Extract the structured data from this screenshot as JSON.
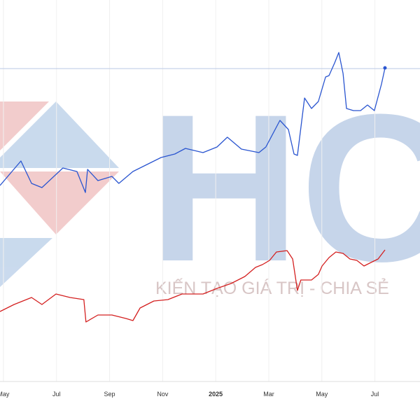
{
  "watermark": {
    "logo": "HC",
    "slogan": "KIẾN TẠO GIÁ TRỊ - CHIA SẺ"
  },
  "chart_data": {
    "type": "line",
    "xlim": [
      -0.13,
      15.7
    ],
    "ylim": [
      0,
      545
    ],
    "xticks": [
      {
        "value": 0,
        "label": "May"
      },
      {
        "value": 2,
        "label": "Jul"
      },
      {
        "value": 4,
        "label": "Sep"
      },
      {
        "value": 6,
        "label": "Nov"
      },
      {
        "value": 8,
        "label": "2025"
      },
      {
        "value": 10,
        "label": "Mar"
      },
      {
        "value": 12,
        "label": "May"
      },
      {
        "value": 14,
        "label": "Jul"
      }
    ],
    "grid": true,
    "reference_line": 447,
    "series": [
      {
        "color": "#2a55d0",
        "x": [
          -0.13,
          0.66,
          1.06,
          1.45,
          2.24,
          2.77,
          3.09,
          3.17,
          3.56,
          4.09,
          4.35,
          4.88,
          5.41,
          5.94,
          6.46,
          6.86,
          7.52,
          8.05,
          8.44,
          8.97,
          9.63,
          9.89,
          10.42,
          10.74,
          10.95,
          11.08,
          11.35,
          11.61,
          11.87,
          12.14,
          12.27,
          12.48,
          12.64,
          12.8,
          12.93,
          13.19,
          13.46,
          13.72,
          13.98,
          14.25,
          14.38
        ],
        "values": [
          280,
          315,
          283,
          277,
          305,
          300,
          270,
          303,
          287,
          293,
          283,
          300,
          310,
          320,
          325,
          333,
          327,
          335,
          349,
          332,
          327,
          335,
          373,
          360,
          325,
          323,
          405,
          390,
          400,
          435,
          437,
          455,
          470,
          440,
          390,
          387,
          387,
          395,
          387,
          425,
          448
        ]
      },
      {
        "color": "#d42020",
        "x": [
          -0.13,
          0.4,
          1.06,
          1.45,
          1.98,
          2.51,
          3.03,
          3.11,
          3.56,
          4.09,
          4.62,
          4.88,
          5.15,
          5.67,
          6.2,
          6.73,
          7.52,
          8.05,
          8.58,
          9.1,
          9.5,
          9.76,
          10.03,
          10.29,
          10.69,
          10.9,
          11.08,
          11.21,
          11.61,
          11.87,
          12.01,
          12.27,
          12.53,
          12.8,
          13.06,
          13.32,
          13.59,
          13.85,
          14.12,
          14.38
        ],
        "values": [
          100,
          110,
          120,
          110,
          125,
          120,
          117,
          85,
          95,
          95,
          90,
          87,
          105,
          115,
          117,
          125,
          125,
          133,
          140,
          150,
          163,
          167,
          173,
          185,
          187,
          175,
          130,
          145,
          145,
          153,
          165,
          177,
          185,
          183,
          175,
          173,
          165,
          170,
          175,
          188
        ]
      }
    ]
  }
}
